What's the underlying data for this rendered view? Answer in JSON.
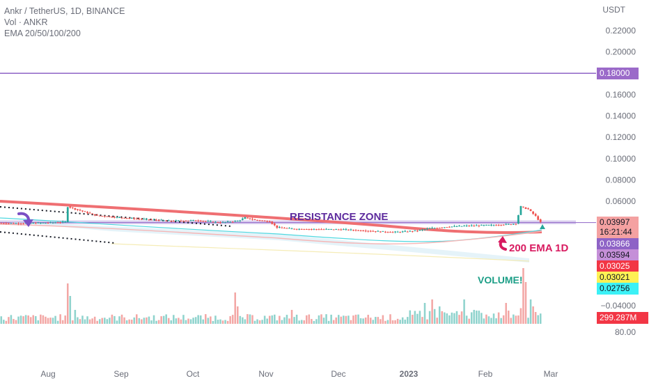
{
  "legend": {
    "symbol": "Ankr / TetherUS, 1D, BINANCE",
    "volume": "Vol · ANKR",
    "ema": "EMA 20/50/100/200"
  },
  "axis_unit": "USDT",
  "annotations": {
    "resistance": "RESISTANCE ZONE",
    "ema200": "200 EMA 1D",
    "volume": "VOLUME!"
  },
  "price_tags": [
    {
      "id": "level",
      "text": "0.18000",
      "bg": "#9b6ac9",
      "fg": "#ffffff"
    },
    {
      "id": "last",
      "text": "0.03997",
      "bg": "#f4a1a1",
      "fg": "#131722"
    },
    {
      "id": "countdown",
      "text": "16:21:44",
      "bg": "#f4a1a1",
      "fg": "#131722"
    },
    {
      "id": "ema20",
      "text": "0.03866",
      "bg": "#8e63c6",
      "fg": "#ffffff"
    },
    {
      "id": "ema50",
      "text": "0.03594",
      "bg": "#c58fd8",
      "fg": "#131722"
    },
    {
      "id": "ema100",
      "text": "0.03025",
      "bg": "#f23645",
      "fg": "#ffffff"
    },
    {
      "id": "ema200",
      "text": "0.03021",
      "bg": "#fff154",
      "fg": "#131722"
    },
    {
      "id": "ema-cyan",
      "text": "0.02756",
      "bg": "#3cf1f6",
      "fg": "#131722"
    },
    {
      "id": "volume",
      "text": "299.287M",
      "bg": "#f23645",
      "fg": "#ffffff"
    }
  ],
  "colors": {
    "up": "#26a69a",
    "down": "#ef5350",
    "level_line": "#8e63c6",
    "resistance_zone": "#b9a6e0",
    "ema_red": "#ef6f72",
    "ema_cyan": "#4fd8e0",
    "ema_pink": "#f6b6b6",
    "ema_yellow": "#f5ecb6",
    "arrow_purple": "#7b4fc4",
    "arrow_red": "#d81b60",
    "volume_text": "#1b9e86",
    "resistance_text": "#5e2c9e"
  },
  "chart_data": {
    "type": "candlestick",
    "title": "Ankr / TetherUS, 1D, BINANCE",
    "y_unit": "USDT",
    "y_ticks": [
      0.22,
      0.2,
      0.18,
      0.16,
      0.14,
      0.12,
      0.1,
      0.08,
      0.06
    ],
    "y_tick_labels": [
      "0.22000",
      "0.20000",
      "0.18000",
      "0.16000",
      "0.14000",
      "0.12000",
      "0.10000",
      "0.08000",
      "0.06000"
    ],
    "lower_axis_labels": [
      "−0.04000",
      "80.00"
    ],
    "x_labels": [
      "Aug",
      "Sep",
      "Oct",
      "Nov",
      "Dec",
      "2023",
      "Feb",
      "Mar"
    ],
    "price_path": [
      [
        0,
        0.0395
      ],
      [
        10,
        0.0392
      ],
      [
        20,
        0.0398
      ],
      [
        27,
        0.0405
      ],
      [
        28,
        0.055
      ],
      [
        32,
        0.052
      ],
      [
        40,
        0.0465
      ],
      [
        50,
        0.0445
      ],
      [
        60,
        0.043
      ],
      [
        70,
        0.0415
      ],
      [
        80,
        0.042
      ],
      [
        90,
        0.04
      ],
      [
        97,
        0.0415
      ],
      [
        100,
        0.0445
      ],
      [
        104,
        0.0425
      ],
      [
        110,
        0.041
      ],
      [
        113,
        0.0355
      ],
      [
        120,
        0.034
      ],
      [
        140,
        0.0335
      ],
      [
        155,
        0.0315
      ],
      [
        160,
        0.031
      ],
      [
        165,
        0.0315
      ],
      [
        170,
        0.0325
      ],
      [
        175,
        0.0345
      ],
      [
        182,
        0.036
      ],
      [
        190,
        0.037
      ],
      [
        200,
        0.0375
      ],
      [
        208,
        0.0385
      ],
      [
        210,
        0.0392
      ],
      [
        212,
        0.055
      ],
      [
        215,
        0.0525
      ],
      [
        218,
        0.046
      ],
      [
        220,
        0.04
      ]
    ],
    "horizontal_level": 0.18,
    "resistance_zone": [
      0.0385,
      0.042
    ],
    "last_price": 0.03997,
    "ema_values": {
      "ema20": 0.03866,
      "ema50": 0.03594,
      "ema100": 0.03025,
      "ema200": 0.03021,
      "ema_cyan": 0.02756
    },
    "volume_last": "299.287M"
  }
}
